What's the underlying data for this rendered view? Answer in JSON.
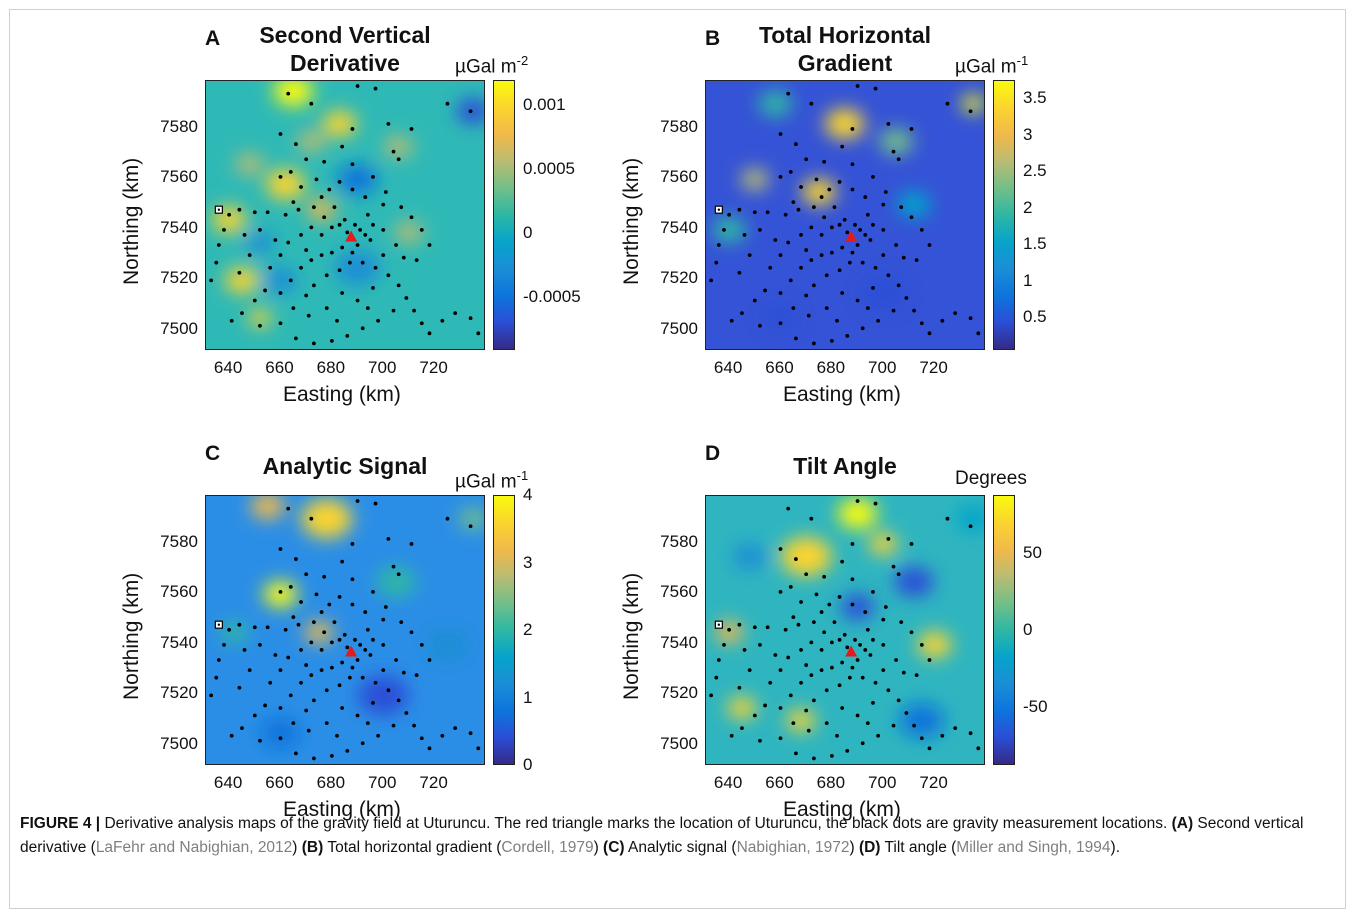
{
  "panels": [
    {
      "letter": "A",
      "title_lines": [
        "Second Vertical",
        "Derivative"
      ],
      "cbar_unit": "µGal m",
      "cbar_exp": "-2",
      "cbar_ticks": [
        "0.001",
        "0.0005",
        "0",
        "-0.0005"
      ],
      "cbar_tick_values": [
        0.001,
        0.0005,
        0,
        -0.0005
      ],
      "cbar_range": [
        -0.00092,
        0.0012
      ],
      "background": "#2fb9b6",
      "blobs": [
        {
          "x": 665,
          "y": 7595,
          "r": 7,
          "v": 0.95
        },
        {
          "x": 683,
          "y": 7582,
          "r": 6,
          "v": 0.85
        },
        {
          "x": 648,
          "y": 7566,
          "r": 5,
          "v": 0.7
        },
        {
          "x": 662,
          "y": 7558,
          "r": 7,
          "v": 0.85
        },
        {
          "x": 672,
          "y": 7575,
          "r": 5,
          "v": 0.7
        },
        {
          "x": 640,
          "y": 7544,
          "r": 6,
          "v": 0.85
        },
        {
          "x": 676,
          "y": 7548,
          "r": 5,
          "v": 0.8
        },
        {
          "x": 645,
          "y": 7520,
          "r": 6,
          "v": 0.85
        },
        {
          "x": 652,
          "y": 7505,
          "r": 4,
          "v": 0.85
        },
        {
          "x": 706,
          "y": 7573,
          "r": 5,
          "v": 0.7
        },
        {
          "x": 710,
          "y": 7539,
          "r": 5,
          "v": 0.65
        },
        {
          "x": 652,
          "y": 7535,
          "r": 5,
          "v": 0.25
        },
        {
          "x": 690,
          "y": 7560,
          "r": 7,
          "v": 0.2
        },
        {
          "x": 735,
          "y": 7587,
          "r": 6,
          "v": 0.05
        },
        {
          "x": 660,
          "y": 7520,
          "r": 6,
          "v": 0.25
        },
        {
          "x": 690,
          "y": 7525,
          "r": 8,
          "v": 0.3
        }
      ]
    },
    {
      "letter": "B",
      "title_lines": [
        "Total Horizontal",
        "Gradient"
      ],
      "cbar_unit": "µGal m",
      "cbar_exp": "-1",
      "cbar_ticks": [
        "3.5",
        "3",
        "2.5",
        "2",
        "1.5",
        "1",
        "0.5"
      ],
      "cbar_tick_values": [
        3.5,
        3,
        2.5,
        2,
        1.5,
        1,
        0.5
      ],
      "cbar_range": [
        0.05,
        3.75
      ],
      "background": "#3553d6",
      "blobs": [
        {
          "x": 685,
          "y": 7582,
          "r": 7,
          "v": 0.9
        },
        {
          "x": 675,
          "y": 7555,
          "r": 6,
          "v": 0.85
        },
        {
          "x": 650,
          "y": 7560,
          "r": 5,
          "v": 0.65
        },
        {
          "x": 735,
          "y": 7590,
          "r": 4,
          "v": 0.95
        },
        {
          "x": 705,
          "y": 7575,
          "r": 6,
          "v": 0.55
        },
        {
          "x": 658,
          "y": 7590,
          "r": 6,
          "v": 0.45
        },
        {
          "x": 640,
          "y": 7540,
          "r": 6,
          "v": 0.5
        },
        {
          "x": 712,
          "y": 7550,
          "r": 6,
          "v": 0.4
        },
        {
          "x": 660,
          "y": 7505,
          "r": 6,
          "v": 0.05
        },
        {
          "x": 700,
          "y": 7515,
          "r": 8,
          "v": 0.1
        }
      ]
    },
    {
      "letter": "C",
      "title_lines": [
        "Analytic Signal"
      ],
      "cbar_unit": "µGal m",
      "cbar_exp": "-1",
      "cbar_ticks": [
        "4",
        "3",
        "2",
        "1",
        "0"
      ],
      "cbar_tick_values": [
        4,
        3,
        2,
        1,
        0
      ],
      "cbar_range": [
        0,
        4
      ],
      "background": "#2b8ee6",
      "blobs": [
        {
          "x": 678,
          "y": 7590,
          "r": 9,
          "v": 0.9
        },
        {
          "x": 660,
          "y": 7560,
          "r": 6,
          "v": 0.95
        },
        {
          "x": 655,
          "y": 7595,
          "r": 6,
          "v": 0.75
        },
        {
          "x": 675,
          "y": 7545,
          "r": 5,
          "v": 0.75
        },
        {
          "x": 735,
          "y": 7590,
          "r": 5,
          "v": 0.55
        },
        {
          "x": 705,
          "y": 7565,
          "r": 7,
          "v": 0.5
        },
        {
          "x": 642,
          "y": 7545,
          "r": 5,
          "v": 0.5
        },
        {
          "x": 700,
          "y": 7520,
          "r": 9,
          "v": 0.1
        },
        {
          "x": 660,
          "y": 7505,
          "r": 7,
          "v": 0.15
        },
        {
          "x": 725,
          "y": 7540,
          "r": 8,
          "v": 0.3
        }
      ]
    },
    {
      "letter": "D",
      "title_lines": [
        "Tilt Angle"
      ],
      "cbar_unit": "Degrees",
      "cbar_exp": "",
      "cbar_ticks": [
        "50",
        "0",
        "-50"
      ],
      "cbar_tick_values": [
        50,
        0,
        -50
      ],
      "cbar_range": [
        -88,
        88
      ],
      "background": "#2fb5c0",
      "blobs": [
        {
          "x": 670,
          "y": 7575,
          "r": 9,
          "v": 0.92
        },
        {
          "x": 690,
          "y": 7592,
          "r": 7,
          "v": 0.95
        },
        {
          "x": 720,
          "y": 7540,
          "r": 6,
          "v": 0.9
        },
        {
          "x": 700,
          "y": 7580,
          "r": 5,
          "v": 0.85
        },
        {
          "x": 645,
          "y": 7515,
          "r": 5,
          "v": 0.9
        },
        {
          "x": 668,
          "y": 7510,
          "r": 5,
          "v": 0.85
        },
        {
          "x": 640,
          "y": 7545,
          "r": 5,
          "v": 0.8
        },
        {
          "x": 712,
          "y": 7565,
          "r": 7,
          "v": 0.1
        },
        {
          "x": 690,
          "y": 7555,
          "r": 6,
          "v": 0.1
        },
        {
          "x": 715,
          "y": 7510,
          "r": 8,
          "v": 0.15
        },
        {
          "x": 648,
          "y": 7575,
          "r": 6,
          "v": 0.25
        },
        {
          "x": 735,
          "y": 7590,
          "r": 6,
          "v": 0.35
        }
      ]
    }
  ],
  "axes": {
    "xlabel": "Easting (km)",
    "ylabel": "Northing (km)",
    "xticks": [
      "640",
      "660",
      "680",
      "700",
      "720"
    ],
    "xtick_values": [
      640,
      660,
      680,
      700,
      720
    ],
    "yticks": [
      "7580",
      "7560",
      "7540",
      "7520",
      "7500"
    ],
    "ytick_values": [
      7580,
      7560,
      7540,
      7520,
      7500
    ],
    "xlim": [
      631,
      740
    ],
    "ylim": [
      7492,
      7599
    ]
  },
  "chart_data": {
    "type": "scatter",
    "volcano": {
      "x": 687.5,
      "y": 7537,
      "color": "#e41a1c"
    },
    "square_marker": {
      "x": 636,
      "y": 7548
    },
    "stations": [
      [
        690,
        7597
      ],
      [
        697,
        7596
      ],
      [
        663,
        7594
      ],
      [
        672,
        7590
      ],
      [
        725,
        7590
      ],
      [
        734,
        7587
      ],
      [
        702,
        7582
      ],
      [
        711,
        7580
      ],
      [
        688,
        7580
      ],
      [
        660,
        7578
      ],
      [
        666,
        7574
      ],
      [
        684,
        7573
      ],
      [
        704,
        7571
      ],
      [
        706,
        7568
      ],
      [
        670,
        7568
      ],
      [
        677,
        7567
      ],
      [
        688,
        7566
      ],
      [
        664,
        7563
      ],
      [
        660,
        7561
      ],
      [
        674,
        7560
      ],
      [
        683,
        7559
      ],
      [
        696,
        7561
      ],
      [
        701,
        7555
      ],
      [
        668,
        7557
      ],
      [
        679,
        7556
      ],
      [
        688,
        7556
      ],
      [
        693,
        7553
      ],
      [
        700,
        7550
      ],
      [
        707,
        7549
      ],
      [
        711,
        7545
      ],
      [
        650,
        7547
      ],
      [
        644,
        7548
      ],
      [
        640,
        7546
      ],
      [
        638,
        7540
      ],
      [
        636,
        7534
      ],
      [
        635,
        7527
      ],
      [
        633,
        7520
      ],
      [
        655,
        7547
      ],
      [
        662,
        7546
      ],
      [
        667,
        7548
      ],
      [
        673,
        7549
      ],
      [
        677,
        7545
      ],
      [
        672,
        7541
      ],
      [
        668,
        7538
      ],
      [
        676,
        7538
      ],
      [
        680,
        7541
      ],
      [
        683,
        7542
      ],
      [
        685,
        7544
      ],
      [
        686,
        7539
      ],
      [
        689,
        7542
      ],
      [
        691,
        7540
      ],
      [
        693,
        7538
      ],
      [
        695,
        7536
      ],
      [
        696,
        7542
      ],
      [
        690,
        7534
      ],
      [
        688,
        7531
      ],
      [
        684,
        7533
      ],
      [
        680,
        7531
      ],
      [
        676,
        7530
      ],
      [
        672,
        7528
      ],
      [
        668,
        7525
      ],
      [
        664,
        7520
      ],
      [
        660,
        7515
      ],
      [
        654,
        7516
      ],
      [
        650,
        7512
      ],
      [
        645,
        7507
      ],
      [
        641,
        7504
      ],
      [
        652,
        7502
      ],
      [
        660,
        7503
      ],
      [
        665,
        7509
      ],
      [
        670,
        7514
      ],
      [
        673,
        7518
      ],
      [
        678,
        7522
      ],
      [
        683,
        7524
      ],
      [
        687,
        7527
      ],
      [
        692,
        7527
      ],
      [
        697,
        7525
      ],
      [
        702,
        7522
      ],
      [
        706,
        7518
      ],
      [
        709,
        7513
      ],
      [
        712,
        7508
      ],
      [
        715,
        7503
      ],
      [
        718,
        7499
      ],
      [
        723,
        7504
      ],
      [
        728,
        7507
      ],
      [
        734,
        7505
      ],
      [
        737,
        7499
      ],
      [
        704,
        7508
      ],
      [
        698,
        7504
      ],
      [
        692,
        7501
      ],
      [
        686,
        7498
      ],
      [
        680,
        7496
      ],
      [
        673,
        7495
      ],
      [
        666,
        7497
      ],
      [
        690,
        7512
      ],
      [
        684,
        7515
      ],
      [
        678,
        7509
      ],
      [
        671,
        7506
      ],
      [
        700,
        7530
      ],
      [
        705,
        7534
      ],
      [
        700,
        7540
      ],
      [
        648,
        7530
      ],
      [
        644,
        7523
      ],
      [
        656,
        7525
      ],
      [
        660,
        7530
      ],
      [
        663,
        7535
      ],
      [
        652,
        7540
      ],
      [
        646,
        7538
      ],
      [
        715,
        7540
      ],
      [
        718,
        7534
      ],
      [
        713,
        7528
      ],
      [
        708,
        7529
      ],
      [
        696,
        7517
      ],
      [
        694,
        7509
      ],
      [
        682,
        7504
      ],
      [
        658,
        7536
      ],
      [
        670,
        7532
      ],
      [
        681,
        7549
      ],
      [
        694,
        7546
      ],
      [
        676,
        7553
      ],
      [
        665,
        7551
      ]
    ]
  },
  "caption": {
    "label": "FIGURE 4 |",
    "intro": " Derivative analysis maps of the gravity field at Uturuncu. The red triangle marks the location of Uturuncu, the black dots are gravity measurement locations. ",
    "a_tag": "(A)",
    "a_text": " Second vertical derivative (",
    "a_ref": "LaFehr and Nabighian, 2012",
    "a_end": ") ",
    "b_tag": "(B)",
    "b_text": " Total horizontal gradient (",
    "b_ref": "Cordell, 1979",
    "b_end": ") ",
    "c_tag": "(C)",
    "c_text": " Analytic signal (",
    "c_ref": "Nabighian, 1972",
    "c_end": ") ",
    "d_tag": "(D)",
    "d_text": " Tilt angle (",
    "d_ref": "Miller and Singh, 1994",
    "d_end": ")."
  },
  "colors": {
    "parula": [
      "#352a87",
      "#2b4fd7",
      "#0d75dc",
      "#1b8ed6",
      "#06a4ca",
      "#2eb7a4",
      "#72bf88",
      "#b9bc72",
      "#f1b94a",
      "#fbd42e",
      "#f9fb0e"
    ],
    "station": "#000000"
  }
}
